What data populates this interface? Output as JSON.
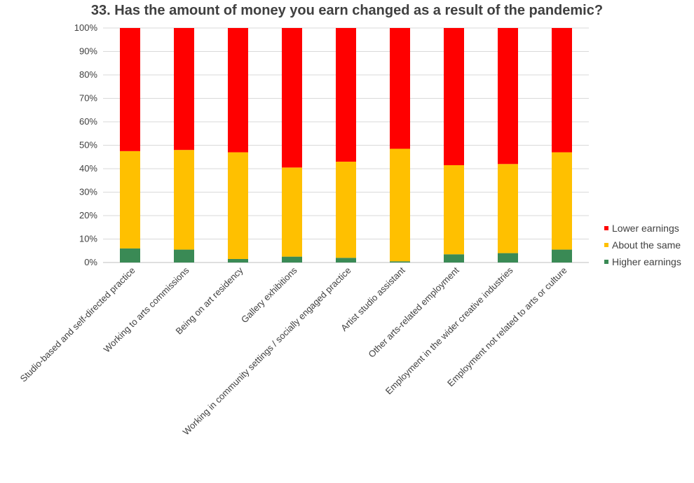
{
  "chart_data": {
    "type": "bar",
    "stacked": true,
    "title": "33. Has the amount of money you earn changed as a result of the pandemic?",
    "xlabel": "",
    "ylabel": "",
    "ylim": [
      0,
      100
    ],
    "y_ticks": [
      "0%",
      "10%",
      "20%",
      "30%",
      "40%",
      "50%",
      "60%",
      "70%",
      "80%",
      "90%",
      "100%"
    ],
    "grid": true,
    "legend_position": "right",
    "categories": [
      "Studio-based and self-directed practice",
      "Working to arts commissions",
      "Being on art residency",
      "Gallery exhibitions",
      "Working in community settings / socially engaged practice",
      "Artist studio assistant",
      "Other arts-related employment",
      "Employment in the wider creative industries",
      "Employment not related to arts or culture"
    ],
    "series": [
      {
        "name": "Higher earnings",
        "color": "#3a8a55",
        "values": [
          6,
          5.5,
          1.5,
          2.5,
          2,
          0.5,
          3.5,
          4,
          5.5
        ]
      },
      {
        "name": "About the same",
        "color": "#ffc000",
        "values": [
          41.5,
          42.5,
          45.5,
          38,
          41,
          48,
          38,
          38,
          41.5
        ]
      },
      {
        "name": "Lower earnings",
        "color": "#ff0000",
        "values": [
          52.5,
          52,
          53,
          59.5,
          57,
          51.5,
          58.5,
          58,
          53
        ]
      }
    ],
    "legend_order": [
      "Lower earnings",
      "About the same",
      "Higher earnings"
    ]
  }
}
